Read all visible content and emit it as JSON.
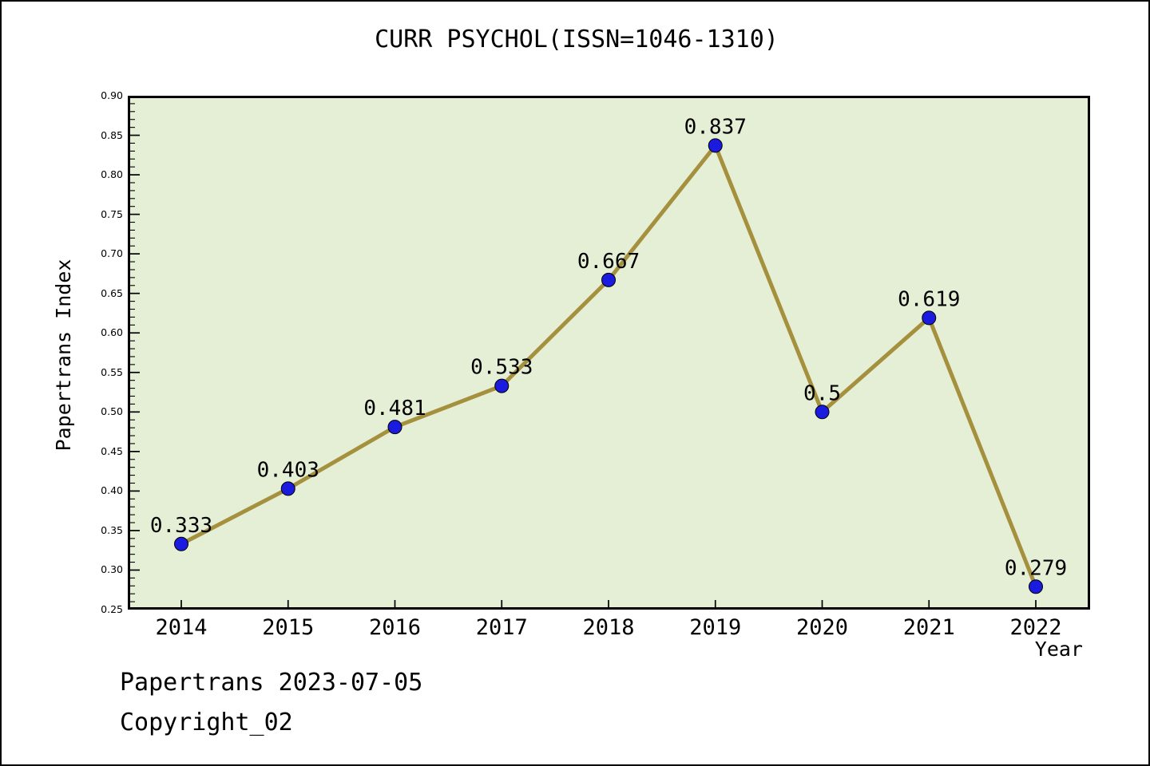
{
  "title": "CURR PSYCHOL(ISSN=1046-1310)",
  "footer": {
    "date_line": "Papertrans 2023-07-05",
    "copyright_line": "Copyright_02"
  },
  "chart_data": {
    "type": "line",
    "categories": [
      "2014",
      "2015",
      "2016",
      "2017",
      "2018",
      "2019",
      "2020",
      "2021",
      "2022"
    ],
    "series": [
      {
        "name": "Papertrans Index",
        "values": [
          0.333,
          0.403,
          0.481,
          0.533,
          0.667,
          0.837,
          0.5,
          0.619,
          0.279
        ]
      }
    ],
    "point_labels": [
      "0.333",
      "0.403",
      "0.481",
      "0.533",
      "0.667",
      "0.837",
      "0.5",
      "0.619",
      "0.279"
    ],
    "title": "CURR PSYCHOL(ISSN=1046-1310)",
    "xlabel": "Year",
    "ylabel": "Papertrans Index",
    "ylim": [
      0.25,
      0.9
    ],
    "ytick_step": 0.05,
    "ytick_minor_step": 0.01,
    "yticks": [
      "0.90",
      "0.85",
      "0.80",
      "0.75",
      "0.70",
      "0.65",
      "0.60",
      "0.55",
      "0.50",
      "0.45",
      "0.40",
      "0.35",
      "0.30",
      "0.25"
    ],
    "grid": false,
    "legend_position": "none",
    "marker_shape": "circle",
    "colors": {
      "line": "#a5903e",
      "marker": "#1b1be0",
      "marker_edge": "#000000",
      "plot_background": "#e4efd6",
      "page_background": "#ffffff",
      "text": "#000000",
      "frame_border": "#000000"
    }
  }
}
